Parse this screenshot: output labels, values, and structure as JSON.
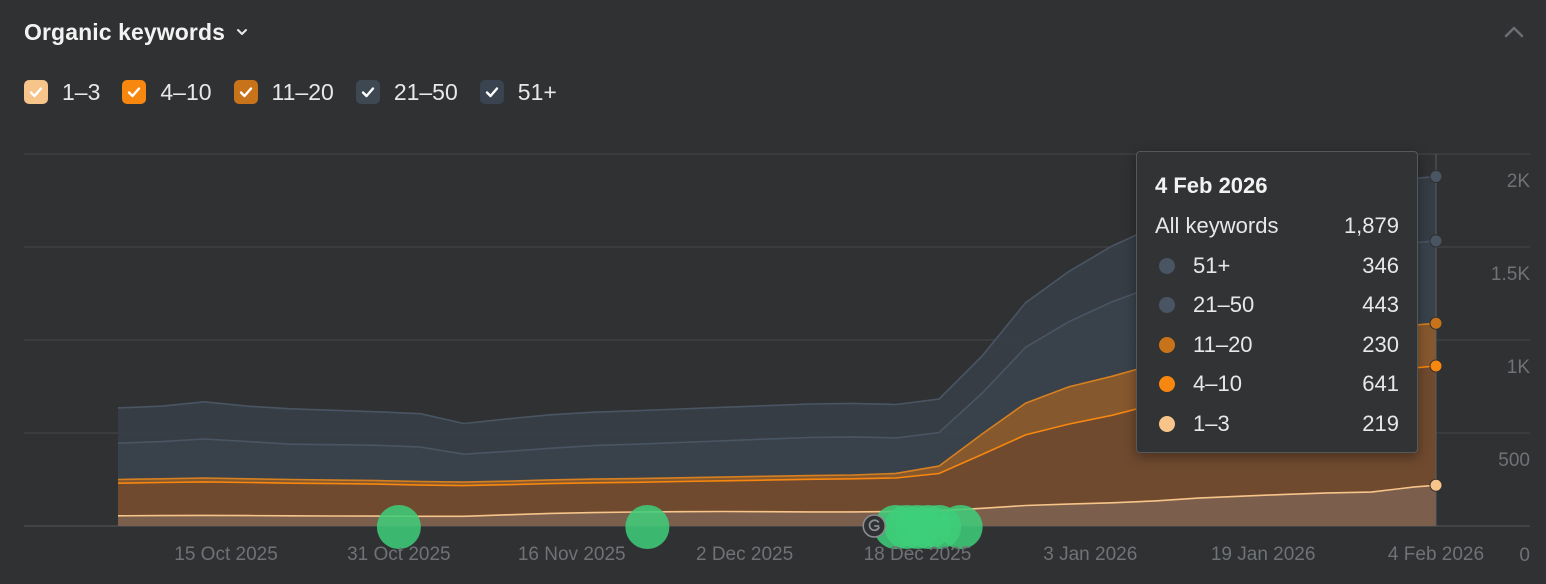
{
  "header": {
    "title": "Organic keywords"
  },
  "colors": {
    "p1_3": "#f7c48a",
    "p4_10": "#f7870f",
    "p11_20": "#c8731a",
    "p21_50": "#3e4853",
    "p51": "#3a4450",
    "event": "#3ecf7a",
    "bg": "#303132",
    "grid": "#46484a",
    "axis_text": "#6f7276"
  },
  "legend": [
    {
      "label": "1–3",
      "color": "#f7c48a",
      "checked": true
    },
    {
      "label": "4–10",
      "color": "#f7870f",
      "checked": true
    },
    {
      "label": "11–20",
      "color": "#c8731a",
      "checked": true
    },
    {
      "label": "21–50",
      "color": "#3e4853",
      "checked": true
    },
    {
      "label": "51+",
      "color": "#3a4450",
      "checked": true
    }
  ],
  "tooltip": {
    "date": "4 Feb 2026",
    "all_label": "All keywords",
    "all_value": "1,879",
    "rows": [
      {
        "label": "51+",
        "value": "346",
        "color": "#4a5563"
      },
      {
        "label": "21–50",
        "value": "443",
        "color": "#4a5563"
      },
      {
        "label": "11–20",
        "value": "230",
        "color": "#c8731a"
      },
      {
        "label": "4–10",
        "value": "641",
        "color": "#f7870f"
      },
      {
        "label": "1–3",
        "value": "219",
        "color": "#f7c48a"
      }
    ]
  },
  "chart_data": {
    "type": "area",
    "stacked": true,
    "ylim": [
      0,
      2000
    ],
    "y_ticks": [
      0,
      500,
      1000,
      1500,
      2000
    ],
    "y_tick_labels": [
      "0",
      "500",
      "1K",
      "1.5K",
      "2K"
    ],
    "x_range": [
      "2025-10-05",
      "2026-02-04"
    ],
    "x_ticks": [
      {
        "date": "2025-10-15",
        "label": "15 Oct 2025"
      },
      {
        "date": "2025-10-31",
        "label": "31 Oct 2025"
      },
      {
        "date": "2025-11-16",
        "label": "16 Nov 2025"
      },
      {
        "date": "2025-12-02",
        "label": "2 Dec 2025"
      },
      {
        "date": "2025-12-18",
        "label": "18 Dec 2025"
      },
      {
        "date": "2026-01-03",
        "label": "3 Jan 2026"
      },
      {
        "date": "2026-01-19",
        "label": "19 Jan 2026"
      },
      {
        "date": "2026-02-04",
        "label": "4 Feb 2026"
      }
    ],
    "grid": true,
    "x": [
      "2025-10-05",
      "2025-10-09",
      "2025-10-13",
      "2025-10-17",
      "2025-10-21",
      "2025-10-25",
      "2025-10-29",
      "2025-11-02",
      "2025-11-06",
      "2025-11-10",
      "2025-11-14",
      "2025-11-18",
      "2025-11-22",
      "2025-11-26",
      "2025-11-30",
      "2025-12-04",
      "2025-12-08",
      "2025-12-12",
      "2025-12-16",
      "2025-12-20",
      "2025-12-24",
      "2025-12-28",
      "2026-01-01",
      "2026-01-05",
      "2026-01-09",
      "2026-01-13",
      "2026-01-17",
      "2026-01-21",
      "2026-01-25",
      "2026-01-29",
      "2026-02-02",
      "2026-02-04"
    ],
    "series": [
      {
        "name": "1–3",
        "values": [
          55,
          56,
          57,
          56,
          55,
          54,
          53,
          52,
          52,
          60,
          68,
          72,
          75,
          77,
          78,
          77,
          76,
          76,
          78,
          82,
          95,
          110,
          118,
          125,
          135,
          150,
          160,
          170,
          178,
          182,
          210,
          219
        ]
      },
      {
        "name": "4–10",
        "values": [
          175,
          178,
          180,
          178,
          175,
          174,
          172,
          168,
          165,
          162,
          160,
          160,
          160,
          162,
          165,
          170,
          175,
          178,
          180,
          200,
          290,
          380,
          430,
          470,
          520,
          570,
          610,
          630,
          638,
          640,
          640,
          641
        ]
      },
      {
        "name": "11–20",
        "values": [
          20,
          20,
          21,
          20,
          20,
          19,
          19,
          19,
          19,
          19,
          20,
          20,
          20,
          20,
          20,
          20,
          20,
          20,
          25,
          40,
          110,
          170,
          200,
          210,
          215,
          220,
          225,
          228,
          229,
          230,
          230,
          230
        ]
      },
      {
        "name": "21–50",
        "values": [
          195,
          200,
          210,
          200,
          190,
          190,
          190,
          185,
          150,
          160,
          170,
          180,
          185,
          190,
          195,
          200,
          205,
          205,
          190,
          180,
          220,
          300,
          350,
          400,
          420,
          430,
          440,
          442,
          442,
          443,
          443,
          443
        ]
      },
      {
        "name": "51+",
        "values": [
          190,
          190,
          200,
          190,
          190,
          185,
          180,
          180,
          165,
          175,
          180,
          180,
          180,
          180,
          180,
          180,
          180,
          180,
          180,
          180,
          200,
          240,
          270,
          300,
          320,
          330,
          340,
          344,
          345,
          345,
          346,
          346
        ]
      }
    ],
    "events": [
      {
        "date": "2025-10-31"
      },
      {
        "date": "2025-11-23"
      },
      {
        "date": "2025-12-16"
      },
      {
        "date": "2025-12-17"
      },
      {
        "date": "2025-12-18"
      },
      {
        "date": "2025-12-19"
      },
      {
        "date": "2025-12-20"
      },
      {
        "date": "2025-12-22"
      }
    ],
    "google_update_date": "2025-12-14",
    "hover_date": "2026-02-04"
  }
}
